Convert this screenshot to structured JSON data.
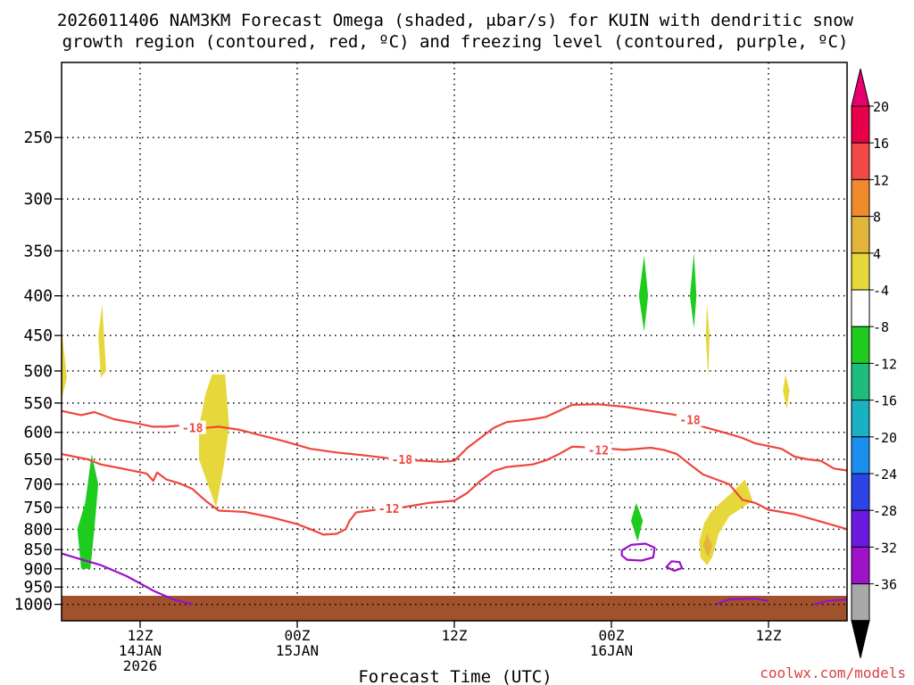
{
  "title_line1": "2026011406 NAM3KM Forecast Omega (shaded, μbar/s) for KUIN with dendritic snow",
  "title_line2": "growth region (contoured, red, ºC) and freezing level (contoured, purple, ºC)",
  "watermark": "coolwx.com/models",
  "chart_data": {
    "type": "heatmap",
    "xlabel": "Forecast Time (UTC)",
    "x_range_hours": [
      0,
      60
    ],
    "x_ticks": [
      {
        "hour": 6,
        "line1": "12Z",
        "line2": "14JAN",
        "line3": "2026"
      },
      {
        "hour": 18,
        "line1": "00Z",
        "line2": "15JAN",
        "line3": ""
      },
      {
        "hour": 30,
        "line1": "12Z",
        "line2": "",
        "line3": ""
      },
      {
        "hour": 42,
        "line1": "00Z",
        "line2": "16JAN",
        "line3": ""
      },
      {
        "hour": 54,
        "line1": "12Z",
        "line2": "",
        "line3": ""
      }
    ],
    "y_scale": "log-pressure",
    "y_range_hpa": [
      1050,
      200
    ],
    "y_ticks": [
      250,
      300,
      350,
      400,
      450,
      500,
      550,
      600,
      650,
      700,
      750,
      800,
      850,
      900,
      950,
      1000
    ],
    "grid": true,
    "colorbar": {
      "labels": [
        "20",
        "16",
        "12",
        "8",
        "4",
        "-4",
        "-8",
        "-12",
        "-16",
        "-20",
        "-24",
        "-28",
        "-32",
        "-36"
      ],
      "colors": [
        "#e8004a",
        "#f24848",
        "#ee8a2c",
        "#e3b43a",
        "#e6d83a",
        "#ffffff",
        "#1ecc1e",
        "#1ebd7d",
        "#19b2c2",
        "#1b8ff0",
        "#2c44e6",
        "#6a1ae0",
        "#a012c9",
        "#a8a8a8"
      ],
      "top_arrow_color": "#e8006e",
      "bottom_arrow_color": "#000000"
    },
    "terrain_color": "#a0522d",
    "contours": [
      {
        "label": "-18",
        "color": "#f0463c",
        "points": [
          [
            0,
            563
          ],
          [
            1.5,
            570
          ],
          [
            2.5,
            565
          ],
          [
            4,
            577
          ],
          [
            5.5,
            583
          ],
          [
            7,
            590
          ],
          [
            8,
            590
          ],
          [
            9,
            588
          ],
          [
            10,
            590
          ],
          [
            11,
            592
          ],
          [
            12,
            590
          ],
          [
            13.5,
            595
          ],
          [
            15,
            604
          ],
          [
            17,
            616
          ],
          [
            19,
            630
          ],
          [
            21,
            637
          ],
          [
            23,
            642
          ],
          [
            25,
            648
          ],
          [
            27,
            652
          ],
          [
            29,
            655
          ],
          [
            30,
            653
          ],
          [
            31,
            628
          ],
          [
            32,
            610
          ],
          [
            33,
            592
          ],
          [
            34,
            582
          ],
          [
            36,
            577
          ],
          [
            37,
            573
          ],
          [
            38,
            563
          ],
          [
            39,
            553
          ],
          [
            41,
            552
          ],
          [
            43,
            556
          ],
          [
            45,
            563
          ],
          [
            47,
            570
          ],
          [
            48,
            578
          ],
          [
            49,
            590
          ],
          [
            51,
            603
          ],
          [
            52,
            610
          ],
          [
            53,
            620
          ],
          [
            55,
            630
          ],
          [
            56,
            645
          ],
          [
            57,
            650
          ],
          [
            58,
            653
          ],
          [
            59,
            668
          ],
          [
            60,
            672
          ]
        ],
        "label_positions": [
          [
            10,
            592
          ],
          [
            26,
            650
          ],
          [
            48,
            578
          ]
        ]
      },
      {
        "label": "-12",
        "color": "#f0463c",
        "points": [
          [
            0,
            640
          ],
          [
            2,
            650
          ],
          [
            3,
            660
          ],
          [
            5,
            670
          ],
          [
            6.5,
            678
          ],
          [
            7,
            693
          ],
          [
            7.3,
            676
          ],
          [
            8,
            690
          ],
          [
            9,
            698
          ],
          [
            10,
            710
          ],
          [
            11,
            735
          ],
          [
            12,
            757
          ],
          [
            14,
            760
          ],
          [
            16,
            772
          ],
          [
            18,
            788
          ],
          [
            19,
            800
          ],
          [
            20,
            813
          ],
          [
            21,
            811
          ],
          [
            21.7,
            800
          ],
          [
            22,
            780
          ],
          [
            22.5,
            761
          ],
          [
            24,
            755
          ],
          [
            26,
            750
          ],
          [
            28,
            740
          ],
          [
            30,
            735
          ],
          [
            31,
            718
          ],
          [
            32,
            693
          ],
          [
            33,
            673
          ],
          [
            34,
            665
          ],
          [
            36,
            660
          ],
          [
            37,
            652
          ],
          [
            38,
            640
          ],
          [
            39,
            626
          ],
          [
            41,
            628
          ],
          [
            43,
            632
          ],
          [
            45,
            628
          ],
          [
            46,
            632
          ],
          [
            47,
            640
          ],
          [
            48,
            660
          ],
          [
            49,
            680
          ],
          [
            51,
            700
          ],
          [
            52,
            733
          ],
          [
            53,
            740
          ],
          [
            54,
            755
          ],
          [
            56,
            765
          ],
          [
            58,
            782
          ],
          [
            60,
            800
          ]
        ],
        "label_positions": [
          [
            25,
            752
          ],
          [
            41,
            632
          ]
        ]
      },
      {
        "label": "",
        "color": "#9a10c8",
        "points": [
          [
            0,
            860
          ],
          [
            1.5,
            875
          ],
          [
            3,
            890
          ],
          [
            5,
            920
          ],
          [
            7,
            960
          ],
          [
            8.5,
            985
          ],
          [
            10,
            1000
          ]
        ],
        "label_positions": []
      },
      {
        "label": "",
        "color": "#9a10c8",
        "points": [
          [
            50,
            1000
          ],
          [
            51,
            985
          ],
          [
            53,
            983
          ],
          [
            54,
            990
          ]
        ],
        "label_positions": []
      },
      {
        "label": "",
        "color": "#9a10c8",
        "points": [
          [
            57.5,
            1000
          ],
          [
            58.5,
            990
          ],
          [
            60,
            985
          ]
        ],
        "label_positions": []
      },
      {
        "label": "",
        "color": "#9a10c8",
        "closed": true,
        "points": [
          [
            42.8,
            852
          ],
          [
            43.5,
            838
          ],
          [
            44.6,
            835
          ],
          [
            45.3,
            845
          ],
          [
            45.2,
            870
          ],
          [
            44.3,
            878
          ],
          [
            43.2,
            876
          ],
          [
            42.8,
            865
          ]
        ],
        "label_positions": []
      },
      {
        "label": "",
        "color": "#9a10c8",
        "closed": true,
        "points": [
          [
            46.2,
            895
          ],
          [
            46.6,
            880
          ],
          [
            47.2,
            882
          ],
          [
            47.4,
            898
          ],
          [
            46.8,
            905
          ]
        ],
        "label_positions": []
      }
    ],
    "shaded_regions": [
      {
        "omega_min": -8,
        "omega_max": -4,
        "color": "#1ecc1e",
        "points": [
          [
            1.5,
            900
          ],
          [
            1.2,
            800
          ],
          [
            1.8,
            740
          ],
          [
            2.0,
            700
          ],
          [
            2.3,
            640
          ],
          [
            2.8,
            700
          ],
          [
            2.5,
            800
          ],
          [
            2.2,
            900
          ]
        ]
      },
      {
        "omega_min": -8,
        "omega_max": -4,
        "color": "#1ecc1e",
        "points": [
          [
            44.1,
            400
          ],
          [
            44.5,
            355
          ],
          [
            44.8,
            400
          ],
          [
            44.5,
            445
          ]
        ]
      },
      {
        "omega_min": -8,
        "omega_max": -4,
        "color": "#1ecc1e",
        "points": [
          [
            48.0,
            400
          ],
          [
            48.3,
            352
          ],
          [
            48.5,
            400
          ],
          [
            48.3,
            440
          ]
        ]
      },
      {
        "omega_min": -8,
        "omega_max": -4,
        "color": "#1ecc1e",
        "points": [
          [
            43.5,
            780
          ],
          [
            43.9,
            740
          ],
          [
            44.4,
            780
          ],
          [
            44.0,
            830
          ]
        ]
      },
      {
        "omega_min": 4,
        "omega_max": 8,
        "color": "#e6d83a",
        "points": [
          [
            0,
            440
          ],
          [
            0.4,
            510
          ],
          [
            0,
            545
          ]
        ]
      },
      {
        "omega_min": 4,
        "omega_max": 8,
        "color": "#e6d83a",
        "points": [
          [
            2.8,
            450
          ],
          [
            3.1,
            410
          ],
          [
            3.4,
            500
          ],
          [
            3.0,
            510
          ]
        ]
      },
      {
        "omega_min": 4,
        "omega_max": 8,
        "color": "#e6d83a",
        "points": [
          [
            10.5,
            590
          ],
          [
            11,
            535
          ],
          [
            11.5,
            505
          ],
          [
            12.5,
            505
          ],
          [
            12.8,
            590
          ],
          [
            12.4,
            660
          ],
          [
            12.0,
            720
          ],
          [
            11.8,
            750
          ],
          [
            11.3,
            710
          ],
          [
            10.5,
            650
          ]
        ]
      },
      {
        "omega_min": 4,
        "omega_max": 8,
        "color": "#e6d83a",
        "points": [
          [
            49.2,
            450
          ],
          [
            49.3,
            410
          ],
          [
            49.5,
            450
          ],
          [
            49.4,
            510
          ]
        ]
      },
      {
        "omega_min": 4,
        "omega_max": 8,
        "color": "#e6d83a",
        "points": [
          [
            48.7,
            830
          ],
          [
            49.1,
            785
          ],
          [
            49.6,
            760
          ],
          [
            50.5,
            735
          ],
          [
            51.2,
            718
          ],
          [
            52.2,
            690
          ],
          [
            52.8,
            735
          ],
          [
            52,
            750
          ],
          [
            51,
            770
          ],
          [
            50.2,
            810
          ],
          [
            49.7,
            870
          ],
          [
            49.3,
            890
          ],
          [
            48.8,
            870
          ]
        ]
      },
      {
        "omega_min": 4,
        "omega_max": 8,
        "color": "#e6d83a",
        "points": [
          [
            55.1,
            530
          ],
          [
            55.3,
            505
          ],
          [
            55.6,
            530
          ],
          [
            55.4,
            560
          ]
        ]
      },
      {
        "omega_min": 8,
        "omega_max": 12,
        "color": "#e3b43a",
        "points": [
          [
            49.0,
            840
          ],
          [
            49.3,
            810
          ],
          [
            49.7,
            840
          ],
          [
            49.4,
            870
          ]
        ]
      }
    ]
  }
}
